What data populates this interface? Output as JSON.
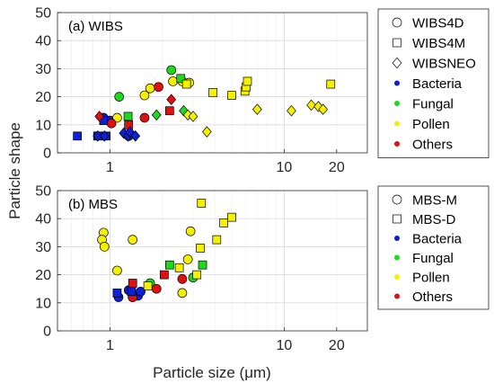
{
  "chart_data": [
    {
      "type": "scatter",
      "title": "(a) WIBS",
      "ylabel": "Particle shape",
      "xscale": "log",
      "xlim": [
        0.5,
        30
      ],
      "ylim": [
        0,
        50
      ],
      "xticks": [
        {
          "v": 1,
          "label": "1"
        },
        {
          "v": 10,
          "label": "10"
        },
        {
          "v": 20,
          "label": "20"
        }
      ],
      "yticks": [
        0,
        10,
        20,
        30,
        40,
        50
      ],
      "grid": true,
      "legend_position": "outside-right",
      "legend": [
        {
          "label": "WIBS4D",
          "marker": "circle",
          "fill": "none"
        },
        {
          "label": "WIBS4M",
          "marker": "square",
          "fill": "none"
        },
        {
          "label": "WIBSNEO",
          "marker": "diamond",
          "fill": "none"
        },
        {
          "label": "Bacteria",
          "marker": "dot",
          "color": "#0a1fd6"
        },
        {
          "label": "Fungal",
          "marker": "dot",
          "color": "#1ed81e"
        },
        {
          "label": "Pollen",
          "marker": "dot",
          "color": "#f5f000"
        },
        {
          "label": "Others",
          "marker": "dot",
          "color": "#e01010"
        }
      ],
      "points": [
        {
          "x": 0.92,
          "y": 12.5,
          "m": "circle",
          "c": "Bacteria"
        },
        {
          "x": 1.0,
          "y": 11.5,
          "m": "circle",
          "c": "Bacteria"
        },
        {
          "x": 1.28,
          "y": 6.0,
          "m": "circle",
          "c": "Bacteria"
        },
        {
          "x": 1.13,
          "y": 20.0,
          "m": "circle",
          "c": "Fungal"
        },
        {
          "x": 2.25,
          "y": 29.5,
          "m": "circle",
          "c": "Fungal"
        },
        {
          "x": 1.1,
          "y": 12.5,
          "m": "circle",
          "c": "Pollen"
        },
        {
          "x": 1.58,
          "y": 20.5,
          "m": "circle",
          "c": "Pollen"
        },
        {
          "x": 1.7,
          "y": 23.0,
          "m": "circle",
          "c": "Pollen"
        },
        {
          "x": 2.3,
          "y": 25.5,
          "m": "circle",
          "c": "Pollen"
        },
        {
          "x": 2.6,
          "y": 25.5,
          "m": "circle",
          "c": "Pollen"
        },
        {
          "x": 2.85,
          "y": 25.0,
          "m": "circle",
          "c": "Pollen"
        },
        {
          "x": 1.02,
          "y": 10.5,
          "m": "circle",
          "c": "Others"
        },
        {
          "x": 1.58,
          "y": 12.5,
          "m": "circle",
          "c": "Others"
        },
        {
          "x": 1.9,
          "y": 23.5,
          "m": "circle",
          "c": "Others"
        },
        {
          "x": 0.65,
          "y": 6.0,
          "m": "square",
          "c": "Bacteria"
        },
        {
          "x": 0.85,
          "y": 6.0,
          "m": "square",
          "c": "Bacteria"
        },
        {
          "x": 0.95,
          "y": 6.0,
          "m": "square",
          "c": "Bacteria"
        },
        {
          "x": 0.92,
          "y": 11.5,
          "m": "square",
          "c": "Bacteria"
        },
        {
          "x": 1.27,
          "y": 13.0,
          "m": "square",
          "c": "Fungal"
        },
        {
          "x": 2.55,
          "y": 26.5,
          "m": "square",
          "c": "Fungal"
        },
        {
          "x": 2.75,
          "y": 24.5,
          "m": "square",
          "c": "Pollen"
        },
        {
          "x": 3.9,
          "y": 21.5,
          "m": "square",
          "c": "Pollen"
        },
        {
          "x": 5.0,
          "y": 20.5,
          "m": "square",
          "c": "Pollen"
        },
        {
          "x": 5.95,
          "y": 22.0,
          "m": "square",
          "c": "Pollen"
        },
        {
          "x": 6.05,
          "y": 23.5,
          "m": "square",
          "c": "Pollen"
        },
        {
          "x": 6.15,
          "y": 25.5,
          "m": "square",
          "c": "Pollen"
        },
        {
          "x": 18.5,
          "y": 24.5,
          "m": "square",
          "c": "Pollen"
        },
        {
          "x": 1.28,
          "y": 10.0,
          "m": "square",
          "c": "Others"
        },
        {
          "x": 2.2,
          "y": 15.0,
          "m": "square",
          "c": "Others"
        },
        {
          "x": 0.85,
          "y": 6.0,
          "m": "diamond",
          "c": "Bacteria"
        },
        {
          "x": 0.93,
          "y": 6.0,
          "m": "diamond",
          "c": "Bacteria"
        },
        {
          "x": 1.2,
          "y": 7.0,
          "m": "diamond",
          "c": "Bacteria"
        },
        {
          "x": 1.27,
          "y": 6.0,
          "m": "diamond",
          "c": "Bacteria"
        },
        {
          "x": 1.3,
          "y": 7.5,
          "m": "diamond",
          "c": "Bacteria"
        },
        {
          "x": 1.4,
          "y": 6.0,
          "m": "diamond",
          "c": "Bacteria"
        },
        {
          "x": 1.85,
          "y": 13.5,
          "m": "diamond",
          "c": "Fungal"
        },
        {
          "x": 2.65,
          "y": 15.0,
          "m": "diamond",
          "c": "Fungal"
        },
        {
          "x": 2.8,
          "y": 13.5,
          "m": "diamond",
          "c": "Pollen"
        },
        {
          "x": 3.0,
          "y": 13.0,
          "m": "diamond",
          "c": "Pollen"
        },
        {
          "x": 3.6,
          "y": 7.5,
          "m": "diamond",
          "c": "Pollen"
        },
        {
          "x": 7.0,
          "y": 15.5,
          "m": "diamond",
          "c": "Pollen"
        },
        {
          "x": 11.0,
          "y": 15.0,
          "m": "diamond",
          "c": "Pollen"
        },
        {
          "x": 14.3,
          "y": 17.0,
          "m": "diamond",
          "c": "Pollen"
        },
        {
          "x": 15.7,
          "y": 16.5,
          "m": "diamond",
          "c": "Pollen"
        },
        {
          "x": 16.7,
          "y": 15.5,
          "m": "diamond",
          "c": "Pollen"
        },
        {
          "x": 0.87,
          "y": 13.0,
          "m": "diamond",
          "c": "Others"
        },
        {
          "x": 2.25,
          "y": 19.0,
          "m": "diamond",
          "c": "Others"
        }
      ]
    },
    {
      "type": "scatter",
      "title": "(b) MBS",
      "ylabel": "Particle shape",
      "xlabel": "Particle size (μm)",
      "xscale": "log",
      "xlim": [
        0.5,
        30
      ],
      "ylim": [
        0,
        50
      ],
      "xticks": [
        {
          "v": 1,
          "label": "1"
        },
        {
          "v": 10,
          "label": "10"
        },
        {
          "v": 20,
          "label": "20"
        }
      ],
      "yticks": [
        0,
        10,
        20,
        30,
        40,
        50
      ],
      "grid": true,
      "legend_position": "outside-right",
      "legend": [
        {
          "label": "MBS-M",
          "marker": "circle",
          "fill": "none"
        },
        {
          "label": "MBS-D",
          "marker": "square",
          "fill": "none"
        },
        {
          "label": "Bacteria",
          "marker": "dot",
          "color": "#0a1fd6"
        },
        {
          "label": "Fungal",
          "marker": "dot",
          "color": "#1ed81e"
        },
        {
          "label": "Pollen",
          "marker": "dot",
          "color": "#f5f000"
        },
        {
          "label": "Others",
          "marker": "dot",
          "color": "#e01010"
        }
      ],
      "points": [
        {
          "x": 0.92,
          "y": 35.0,
          "m": "circle",
          "c": "Pollen"
        },
        {
          "x": 0.9,
          "y": 32.5,
          "m": "circle",
          "c": "Pollen"
        },
        {
          "x": 0.93,
          "y": 30.0,
          "m": "circle",
          "c": "Pollen"
        },
        {
          "x": 1.1,
          "y": 21.5,
          "m": "circle",
          "c": "Pollen"
        },
        {
          "x": 1.35,
          "y": 32.5,
          "m": "circle",
          "c": "Pollen"
        },
        {
          "x": 2.6,
          "y": 13.5,
          "m": "circle",
          "c": "Pollen"
        },
        {
          "x": 2.8,
          "y": 25.5,
          "m": "circle",
          "c": "Pollen"
        },
        {
          "x": 2.9,
          "y": 35.5,
          "m": "circle",
          "c": "Pollen"
        },
        {
          "x": 1.12,
          "y": 12.0,
          "m": "circle",
          "c": "Bacteria"
        },
        {
          "x": 1.28,
          "y": 14.5,
          "m": "circle",
          "c": "Bacteria"
        },
        {
          "x": 1.35,
          "y": 12.0,
          "m": "circle",
          "c": "Bacteria"
        },
        {
          "x": 1.45,
          "y": 12.5,
          "m": "circle",
          "c": "Bacteria"
        },
        {
          "x": 1.5,
          "y": 14.0,
          "m": "circle",
          "c": "Bacteria"
        },
        {
          "x": 1.7,
          "y": 17.0,
          "m": "circle",
          "c": "Fungal"
        },
        {
          "x": 3.0,
          "y": 19.0,
          "m": "circle",
          "c": "Fungal"
        },
        {
          "x": 1.35,
          "y": 12.0,
          "m": "circle",
          "c": "Others"
        },
        {
          "x": 1.85,
          "y": 15.0,
          "m": "circle",
          "c": "Others"
        },
        {
          "x": 2.6,
          "y": 18.5,
          "m": "circle",
          "c": "Others"
        },
        {
          "x": 1.1,
          "y": 13.5,
          "m": "square",
          "c": "Bacteria"
        },
        {
          "x": 1.33,
          "y": 14.0,
          "m": "square",
          "c": "Bacteria"
        },
        {
          "x": 2.2,
          "y": 23.5,
          "m": "square",
          "c": "Fungal"
        },
        {
          "x": 3.4,
          "y": 23.5,
          "m": "square",
          "c": "Fungal"
        },
        {
          "x": 1.65,
          "y": 16.0,
          "m": "square",
          "c": "Pollen"
        },
        {
          "x": 2.5,
          "y": 22.5,
          "m": "square",
          "c": "Pollen"
        },
        {
          "x": 3.15,
          "y": 20.0,
          "m": "square",
          "c": "Pollen"
        },
        {
          "x": 3.3,
          "y": 29.5,
          "m": "square",
          "c": "Pollen"
        },
        {
          "x": 3.35,
          "y": 45.5,
          "m": "square",
          "c": "Pollen"
        },
        {
          "x": 4.1,
          "y": 32.5,
          "m": "square",
          "c": "Pollen"
        },
        {
          "x": 4.5,
          "y": 38.5,
          "m": "square",
          "c": "Pollen"
        },
        {
          "x": 5.0,
          "y": 40.5,
          "m": "square",
          "c": "Pollen"
        },
        {
          "x": 1.35,
          "y": 17.0,
          "m": "square",
          "c": "Others"
        },
        {
          "x": 2.05,
          "y": 20.0,
          "m": "square",
          "c": "Others"
        }
      ]
    }
  ],
  "colors": {
    "Bacteria": "#0a1fd6",
    "Fungal": "#1ed81e",
    "Pollen": "#f5f000",
    "Others": "#e01010"
  }
}
